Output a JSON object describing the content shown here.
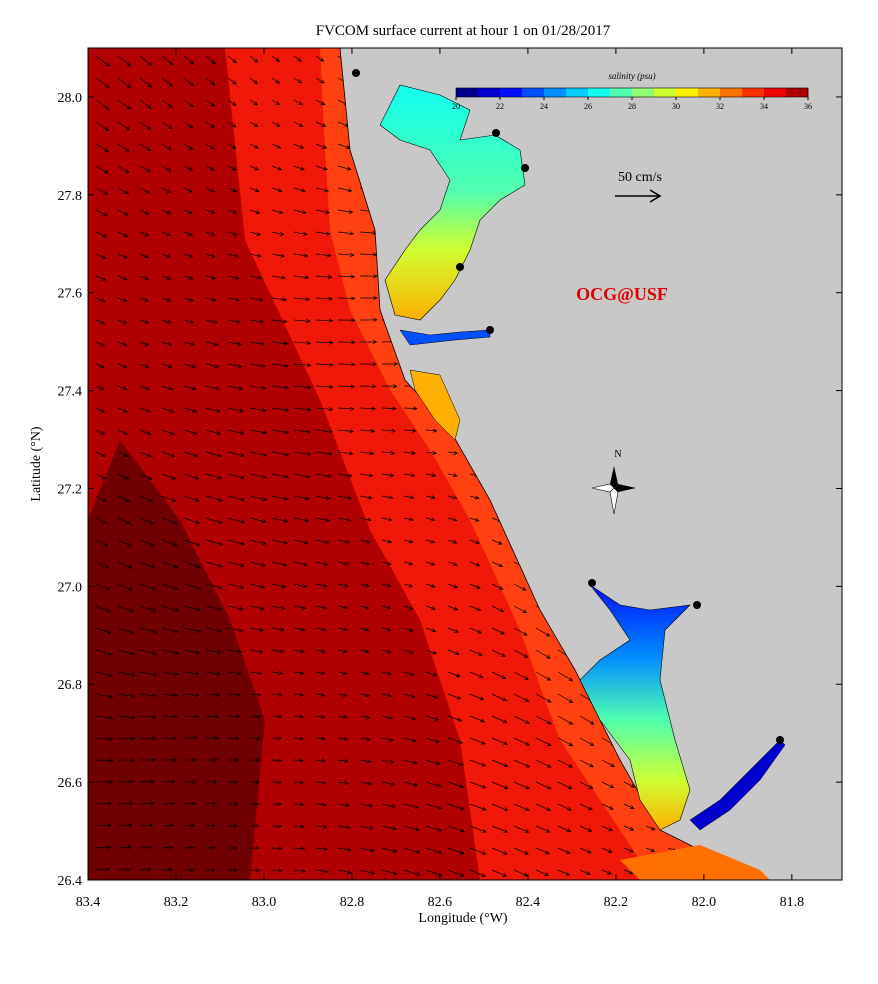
{
  "map": {
    "title": "FVCOM surface current at hour 1 on 01/28/2017",
    "x_axis": {
      "label": "Longitude (°W)",
      "lim": [
        83.4,
        81.686
      ],
      "ticks": [
        83.4,
        83.2,
        {
          "value": 83,
          "label": "83.0"
        },
        82.8,
        82.6,
        82.4,
        82.2,
        {
          "value": 82,
          "label": "82.0"
        },
        81.8
      ]
    },
    "y_axis": {
      "label": "Latitude (°N)",
      "lim": [
        26.4,
        28.1
      ],
      "ticks": [
        26.4,
        26.6,
        26.8,
        {
          "value": 27,
          "label": "27.0"
        },
        27.2,
        27.4,
        27.6,
        27.8,
        {
          "value": 28,
          "label": "28.0"
        }
      ]
    },
    "colorbar": {
      "label": "salinity (psu)",
      "lim": [
        20,
        36
      ],
      "ticks": [
        20,
        22,
        24,
        26,
        28,
        30,
        32,
        34,
        36
      ],
      "colors": [
        "#00008f",
        "#0000cf",
        "#0010ff",
        "#0050ff",
        "#0090ff",
        "#00cfff",
        "#10ffef",
        "#50ffaf",
        "#90ff70",
        "#cfff30",
        "#ffef00",
        "#ffaf00",
        "#ff7000",
        "#ff3000",
        "#ef0000",
        "#af0000"
      ]
    },
    "scale_label": "50 cm/s",
    "watermark": "OCG@USF",
    "compass_label": "N"
  }
}
